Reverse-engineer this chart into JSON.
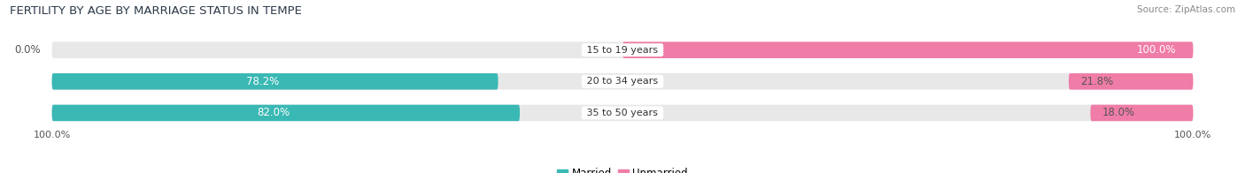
{
  "title": "FERTILITY BY AGE BY MARRIAGE STATUS IN TEMPE",
  "source": "Source: ZipAtlas.com",
  "categories": [
    "15 to 19 years",
    "20 to 34 years",
    "35 to 50 years"
  ],
  "married": [
    0.0,
    78.2,
    82.0
  ],
  "unmarried": [
    100.0,
    21.8,
    18.0
  ],
  "married_color": "#3ab8b4",
  "unmarried_color": "#f07ca8",
  "bar_bg_color": "#e8e8e8",
  "bar_height": 0.52,
  "title_fontsize": 9.5,
  "label_fontsize": 8.5,
  "category_fontsize": 8.0,
  "legend_fontsize": 8.5,
  "source_fontsize": 7.5,
  "married_label_color": "white",
  "unmarried_label_color": "#555555",
  "center_label_color": "#333333"
}
